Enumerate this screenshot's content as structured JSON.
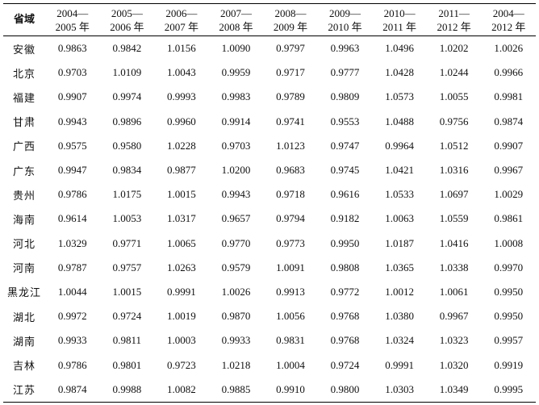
{
  "table": {
    "province_header": "省域",
    "periods": [
      {
        "line1": "2004—",
        "line2": "2005 年"
      },
      {
        "line1": "2005—",
        "line2": "2006 年"
      },
      {
        "line1": "2006—",
        "line2": "2007 年"
      },
      {
        "line1": "2007—",
        "line2": "2008 年"
      },
      {
        "line1": "2008—",
        "line2": "2009 年"
      },
      {
        "line1": "2009—",
        "line2": "2010 年"
      },
      {
        "line1": "2010—",
        "line2": "2011 年"
      },
      {
        "line1": "2011—",
        "line2": "2012 年"
      },
      {
        "line1": "2004—",
        "line2": "2012 年"
      }
    ],
    "rows": [
      {
        "province": "安徽",
        "values": [
          "0.9863",
          "0.9842",
          "1.0156",
          "1.0090",
          "0.9797",
          "0.9963",
          "1.0496",
          "1.0202",
          "1.0026"
        ]
      },
      {
        "province": "北京",
        "values": [
          "0.9703",
          "1.0109",
          "1.0043",
          "0.9959",
          "0.9717",
          "0.9777",
          "1.0428",
          "1.0244",
          "0.9966"
        ]
      },
      {
        "province": "福建",
        "values": [
          "0.9907",
          "0.9974",
          "0.9993",
          "0.9983",
          "0.9789",
          "0.9809",
          "1.0573",
          "1.0055",
          "0.9981"
        ]
      },
      {
        "province": "甘肃",
        "values": [
          "0.9943",
          "0.9896",
          "0.9960",
          "0.9914",
          "0.9741",
          "0.9553",
          "1.0488",
          "0.9756",
          "0.9874"
        ]
      },
      {
        "province": "广西",
        "values": [
          "0.9575",
          "0.9580",
          "1.0228",
          "0.9703",
          "1.0123",
          "0.9747",
          "0.9964",
          "1.0512",
          "0.9907"
        ]
      },
      {
        "province": "广东",
        "values": [
          "0.9947",
          "0.9834",
          "0.9877",
          "1.0200",
          "0.9683",
          "0.9745",
          "1.0421",
          "1.0316",
          "0.9967"
        ]
      },
      {
        "province": "贵州",
        "values": [
          "0.9786",
          "1.0175",
          "1.0015",
          "0.9943",
          "0.9718",
          "0.9616",
          "1.0533",
          "1.0697",
          "1.0029"
        ]
      },
      {
        "province": "海南",
        "values": [
          "0.9614",
          "1.0053",
          "1.0317",
          "0.9657",
          "0.9794",
          "0.9182",
          "1.0063",
          "1.0559",
          "0.9861"
        ]
      },
      {
        "province": "河北",
        "values": [
          "1.0329",
          "0.9771",
          "1.0065",
          "0.9770",
          "0.9773",
          "0.9950",
          "1.0187",
          "1.0416",
          "1.0008"
        ]
      },
      {
        "province": "河南",
        "values": [
          "0.9787",
          "0.9757",
          "1.0263",
          "0.9579",
          "1.0091",
          "0.9808",
          "1.0365",
          "1.0338",
          "0.9970"
        ]
      },
      {
        "province": "黑龙江",
        "values": [
          "1.0044",
          "1.0015",
          "0.9991",
          "1.0026",
          "0.9913",
          "0.9772",
          "1.0012",
          "1.0061",
          "0.9950"
        ]
      },
      {
        "province": "湖北",
        "values": [
          "0.9972",
          "0.9724",
          "1.0019",
          "0.9870",
          "1.0056",
          "0.9768",
          "1.0380",
          "0.9967",
          "0.9950"
        ]
      },
      {
        "province": "湖南",
        "values": [
          "0.9933",
          "0.9811",
          "1.0003",
          "0.9933",
          "0.9831",
          "0.9768",
          "1.0324",
          "1.0323",
          "0.9957"
        ]
      },
      {
        "province": "吉林",
        "values": [
          "0.9786",
          "0.9801",
          "0.9723",
          "1.0218",
          "1.0004",
          "0.9724",
          "0.9991",
          "1.0320",
          "0.9919"
        ]
      },
      {
        "province": "江苏",
        "values": [
          "0.9874",
          "0.9988",
          "1.0082",
          "0.9885",
          "0.9910",
          "0.9800",
          "1.0303",
          "1.0349",
          "0.9995"
        ]
      }
    ]
  }
}
